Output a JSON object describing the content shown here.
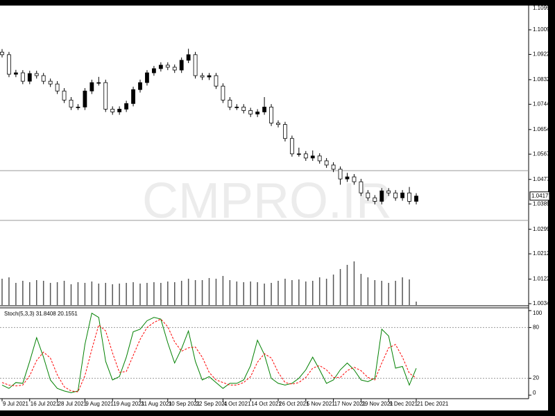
{
  "chart_data": [
    {
      "type": "candlestick",
      "watermark": "CMPRO.IR",
      "up_color": "#000000",
      "down_color": "#ffffff",
      "volume_color": "#555555",
      "level_color": "#999999",
      "ylim": [
        1.00296,
        1.10959
      ],
      "yticks": [
        1.10995,
        1.10095,
        {
          "value": 1.0922,
          "label": "1.09220"
        },
        {
          "value": 1.0832,
          "label": "1.08320"
        },
        1.07445,
        1.06545,
        {
          "value": 1.0567,
          "label": "1.05670"
        },
        {
          "value": 1.0477,
          "label": "1.04770"
        },
        1.03895,
        1.02995,
        {
          "value": 1.0212,
          "label": "1.02120"
        },
        {
          "value": 1.0122,
          "label": "1.01220"
        },
        1.00345
      ],
      "levels": [
        1.0508,
        1.0331
      ],
      "categories": [
        "9 Jul 2021",
        null,
        null,
        null,
        "16 Jul 2021",
        null,
        null,
        null,
        "28 Jul 2021",
        null,
        null,
        null,
        "9 Aug 2021",
        null,
        null,
        null,
        "19 Aug 2021",
        null,
        null,
        null,
        "31 Aug 2021",
        null,
        null,
        null,
        "10 Sep 2021",
        null,
        null,
        null,
        "22 Sep 2021",
        null,
        null,
        null,
        "4 Oct 2021",
        null,
        null,
        null,
        "14 Oct 2021",
        null,
        null,
        null,
        "26 Oct 2021",
        null,
        null,
        null,
        "5 Nov 2021",
        null,
        null,
        null,
        "17 Nov 2021",
        null,
        null,
        null,
        "29 Nov 2021",
        null,
        null,
        null,
        "9 Dec 2021",
        null,
        null,
        null,
        "21 Dec 2021"
      ],
      "ohlc": [
        [
          1.093,
          1.0941,
          1.0911,
          1.0921
        ],
        [
          1.0921,
          1.0931,
          1.0841,
          1.08514
        ],
        [
          1.08514,
          1.0867,
          1.0841,
          1.08564
        ],
        [
          1.08564,
          1.0866,
          1.0816,
          1.08265
        ],
        [
          1.08265,
          1.0864,
          1.0816,
          1.08539
        ],
        [
          1.08539,
          1.0864,
          1.0836,
          1.08464
        ],
        [
          1.08464,
          1.0856,
          1.0816,
          1.08265
        ],
        [
          1.08265,
          1.0836,
          1.0806,
          1.08166
        ],
        [
          1.08166,
          1.0827,
          1.0781,
          1.07917
        ],
        [
          1.07917,
          1.0802,
          1.0749,
          1.07594
        ],
        [
          1.07594,
          1.077,
          1.0724,
          1.07346
        ],
        [
          1.07346,
          1.0745,
          1.0724,
          1.07346
        ],
        [
          1.07346,
          1.0802,
          1.0724,
          1.07917
        ],
        [
          1.07917,
          1.0832,
          1.0781,
          1.08216
        ],
        [
          1.08216,
          1.0842,
          1.0811,
          1.08216
        ],
        [
          1.08216,
          1.0832,
          1.0717,
          1.07271
        ],
        [
          1.07271,
          1.0737,
          1.0707,
          1.07172
        ],
        [
          1.07172,
          1.0737,
          1.0707,
          1.07271
        ],
        [
          1.07271,
          1.0757,
          1.0717,
          1.0747
        ],
        [
          1.0747,
          1.0807,
          1.0737,
          1.07967
        ],
        [
          1.07967,
          1.0832,
          1.0786,
          1.08216
        ],
        [
          1.08216,
          1.0866,
          1.0811,
          1.08564
        ],
        [
          1.08564,
          1.0881,
          1.0846,
          1.08713
        ],
        [
          1.08713,
          1.0894,
          1.0861,
          1.08837
        ],
        [
          1.08837,
          1.0894,
          1.0866,
          1.08763
        ],
        [
          1.08763,
          1.0886,
          1.0856,
          1.08663
        ],
        [
          1.08663,
          1.0911,
          1.0856,
          1.09011
        ],
        [
          1.09011,
          1.0942,
          1.0891,
          1.0921
        ],
        [
          1.0921,
          1.0931,
          1.0836,
          1.08464
        ],
        [
          1.08464,
          1.0856,
          1.0831,
          1.08415
        ],
        [
          1.08415,
          1.0856,
          1.0831,
          1.08464
        ],
        [
          1.08464,
          1.0856,
          1.0799,
          1.08091
        ],
        [
          1.08091,
          1.0819,
          1.0749,
          1.07594
        ],
        [
          1.07594,
          1.077,
          1.0724,
          1.07346
        ],
        [
          1.07346,
          1.0745,
          1.0724,
          1.07346
        ],
        [
          1.07346,
          1.0745,
          1.0712,
          1.07221
        ],
        [
          1.07221,
          1.0732,
          1.0699,
          1.07097
        ],
        [
          1.07097,
          1.0727,
          1.0699,
          1.07172
        ],
        [
          1.07172,
          1.077,
          1.0707,
          1.07346
        ],
        [
          1.07346,
          1.0745,
          1.0667,
          1.06774
        ],
        [
          1.06774,
          1.0687,
          1.0662,
          1.06724
        ],
        [
          1.06724,
          1.0682,
          1.0612,
          1.06227
        ],
        [
          1.06227,
          1.0633,
          1.0558,
          1.0568
        ],
        [
          1.0568,
          1.059,
          1.0558,
          1.0568
        ],
        [
          1.0568,
          1.0578,
          1.0543,
          1.05531
        ],
        [
          1.05531,
          1.058,
          1.0543,
          1.05605
        ],
        [
          1.05605,
          1.057,
          1.0533,
          1.05431
        ],
        [
          1.05431,
          1.0553,
          1.0518,
          1.05282
        ],
        [
          1.05282,
          1.0538,
          1.0503,
          1.05133
        ],
        [
          1.05133,
          1.0523,
          1.0458,
          1.04785
        ],
        [
          1.04785,
          1.05,
          1.0468,
          1.0486
        ],
        [
          1.0486,
          1.0496,
          1.0458,
          1.04686
        ],
        [
          1.04686,
          1.0479,
          1.0418,
          1.04288
        ],
        [
          1.04288,
          1.0439,
          1.0401,
          1.04114
        ],
        [
          1.04114,
          1.0421,
          1.0388,
          1.03989
        ],
        [
          1.03989,
          1.0446,
          1.0388,
          1.04362
        ],
        [
          1.04362,
          1.0446,
          1.0418,
          1.04288
        ],
        [
          1.04288,
          1.0439,
          1.0401,
          1.04114
        ],
        [
          1.04114,
          1.0439,
          1.0401,
          1.04288
        ],
        [
          1.04288,
          1.045,
          1.0388,
          1.03989
        ],
        [
          1.03989,
          1.0428,
          1.0388,
          1.04177
        ]
      ],
      "volume": [
        3800,
        4000,
        3200,
        3500,
        3300,
        3600,
        3500,
        3200,
        3300,
        3500,
        3000,
        3300,
        3200,
        3400,
        3100,
        3200,
        3000,
        3100,
        3200,
        3300,
        3100,
        3200,
        3300,
        3200,
        3400,
        3300,
        3500,
        3800,
        3600,
        3600,
        3900,
        3800,
        4200,
        3600,
        3400,
        3300,
        3400,
        3300,
        3100,
        3200,
        3500,
        3800,
        3600,
        3700,
        3400,
        3500,
        4000,
        3800,
        4400,
        5200,
        5800,
        6300,
        4500,
        4000,
        3600,
        3500,
        3200,
        3500,
        4000,
        3700,
        500
      ]
    },
    {
      "type": "line",
      "title": "Stoch(5,3,3) 31.8408 20.1551",
      "ylim": [
        0,
        100
      ],
      "yticks": [
        100,
        80,
        20,
        0
      ],
      "levels": [
        80,
        20
      ],
      "series": [
        {
          "name": "Main",
          "color": "#008000",
          "dash": false,
          "values": [
            12,
            8,
            15,
            14,
            40,
            68,
            45,
            18,
            8,
            5,
            3,
            5,
            60,
            97,
            92,
            40,
            18,
            22,
            45,
            75,
            78,
            88,
            92,
            90,
            62,
            38,
            55,
            76,
            40,
            18,
            22,
            15,
            8,
            14,
            14,
            18,
            35,
            65,
            48,
            20,
            14,
            12,
            14,
            20,
            30,
            45,
            30,
            14,
            18,
            30,
            38,
            30,
            18,
            16,
            20,
            78,
            70,
            32,
            34,
            12,
            31.8408
          ]
        },
        {
          "name": "Signal",
          "color": "#ff0000",
          "dash": true,
          "values": [
            15,
            12,
            11,
            12,
            23,
            41,
            51,
            44,
            24,
            10,
            5,
            4,
            23,
            54,
            83,
            76,
            50,
            27,
            28,
            47,
            66,
            80,
            86,
            90,
            81,
            63,
            52,
            56,
            57,
            45,
            27,
            18,
            15,
            12,
            12,
            15,
            22,
            39,
            49,
            44,
            27,
            15,
            13,
            15,
            21,
            32,
            35,
            30,
            21,
            21,
            29,
            33,
            29,
            21,
            18,
            38,
            56,
            60,
            45,
            26,
            20.1551
          ]
        }
      ]
    }
  ]
}
